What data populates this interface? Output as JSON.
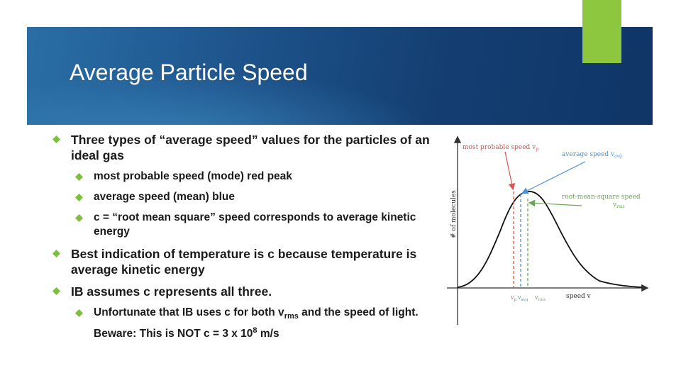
{
  "slide": {
    "title": "Average Particle Speed",
    "bullets": [
      {
        "level": 1,
        "text": "Three types of “average speed” values for the particles of an ideal gas"
      },
      {
        "level": 2,
        "text": "most probable speed (mode) red peak"
      },
      {
        "level": 2,
        "text": "average speed (mean) blue"
      },
      {
        "level": 2,
        "text": "c = “root mean square” speed corresponds to average kinetic energy"
      },
      {
        "level": 1,
        "text": "Best indication of temperature is c because temperature is average kinetic energy"
      },
      {
        "level": 1,
        "text": "IB assumes c represents all three."
      }
    ],
    "last_bullet": {
      "part1": "Unfortunate that IB uses c for both v",
      "sub": "rms",
      "part2": " and the speed of light. Beware: This is NOT c = 3 x 10",
      "sup": "8",
      "part3": " m/s"
    }
  },
  "graph": {
    "y_axis_label": "# of molecules",
    "x_axis_label": "speed v",
    "label_vp": "most probable speed v",
    "label_vp_sub": "p",
    "label_vavg": "average speed v",
    "label_vavg_sub": "avg",
    "label_vrms_line1": "root-mean-square speed",
    "label_vrms_line2": "v",
    "label_vrms_sub": "rms",
    "tick_vp": "v",
    "tick_vp_sub": "p",
    "tick_vavg": "v",
    "tick_vavg_sub": "avg",
    "tick_vrms": "v",
    "tick_vrms_sub": "rms",
    "colors": {
      "red": "#d9534f",
      "blue": "#4a90d9",
      "green": "#6aa84f",
      "curve": "#111111"
    }
  },
  "colors": {
    "banner": "#1b4f86",
    "accent_green": "#8dc63f",
    "bullet": "#7bbf3a"
  }
}
